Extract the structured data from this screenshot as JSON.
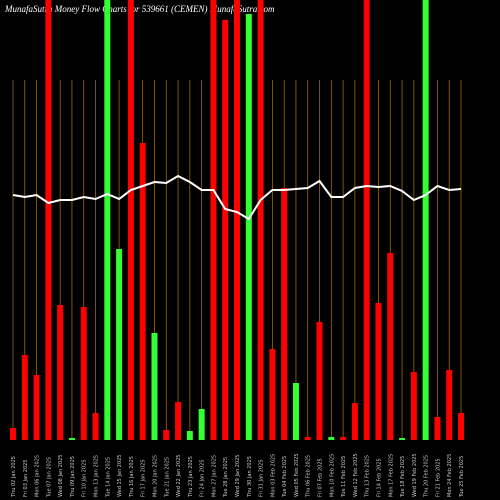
{
  "chart_data": {
    "type": "bar",
    "title": "MunafaSutra  Money Flow  Charts for 539661  (CEMEN) MunafaSutra.com",
    "categories": [
      "Thu 02 Jan 2025",
      "Fri 03 Jan 2025",
      "Mon 06 Jan 2025",
      "Tue 07 Jan 2025",
      "Wed 08 Jan 2025",
      "Thu 09 Jan 2025",
      "Fri 10 Jan 2025",
      "Mon 13 Jan 2025",
      "Tue 14 Jan 2025",
      "Wed 15 Jan 2025",
      "Thu 16 Jan 2025",
      "Fri 17 Jan 2025",
      "Mon 20 Jan 2025",
      "Tue 21 Jan 2025",
      "Wed 22 Jan 2025",
      "Thu 23 Jan 2025",
      "Fri 24 Jan 2025",
      "Mon 27 Jan 2025",
      "Tue 28 Jan 2025",
      "Wed 29 Jan 2025",
      "Thu 30 Jan 2025",
      "Fri 31 Jan 2025",
      "Mon 03 Feb 2025",
      "Tue 04 Feb 2025",
      "Wed 05 Feb 2025",
      "Thu 06 Feb 2025",
      "Fri 07 Feb 2025",
      "Mon 10 Feb 2025",
      "Tue 11 Feb 2025",
      "Wed 12 Feb 2025",
      "Thu 13 Feb 2025",
      "Fri 14 Feb 2025",
      "Mon 17 Feb 2025",
      "Tue 18 Feb 2025",
      "Wed 19 Feb 2025",
      "Thu 20 Feb 2025",
      "Fri 21 Feb 2025",
      "Mon 24 Feb 2025",
      "Tue 25 Feb 2025"
    ],
    "values": [
      12,
      85,
      65,
      440,
      135,
      2,
      133,
      27,
      440,
      191,
      440,
      297,
      107,
      10,
      38,
      9,
      31,
      440,
      420,
      440,
      426,
      440,
      91,
      252,
      57,
      3,
      118,
      3,
      3,
      37,
      440,
      137,
      187,
      2,
      68,
      440,
      23,
      70,
      27
    ],
    "colors": [
      "#ff0000",
      "#ff0000",
      "#ff0000",
      "#ff0000",
      "#ff0000",
      "#33ff33",
      "#ff0000",
      "#ff0000",
      "#33ff33",
      "#33ff33",
      "#ff0000",
      "#ff0000",
      "#33ff33",
      "#ff0000",
      "#ff0000",
      "#33ff33",
      "#33ff33",
      "#ff0000",
      "#ff0000",
      "#ff0000",
      "#33ff33",
      "#ff0000",
      "#ff0000",
      "#ff0000",
      "#33ff33",
      "#ff0000",
      "#ff0000",
      "#33ff33",
      "#ff0000",
      "#ff0000",
      "#ff0000",
      "#ff0000",
      "#ff0000",
      "#33ff33",
      "#ff0000",
      "#33ff33",
      "#ff0000",
      "#ff0000",
      "#ff0000"
    ],
    "line": [
      245,
      243,
      245,
      237,
      240,
      240,
      243,
      241,
      246,
      241,
      250,
      254,
      258,
      257,
      264,
      258,
      250,
      250,
      231,
      228,
      221,
      240,
      250,
      250,
      251,
      252,
      259,
      243,
      243,
      252,
      254,
      253,
      254,
      249,
      240,
      245,
      254,
      250,
      251
    ],
    "line_color": "#ffffff",
    "ylim": [
      0,
      440
    ]
  }
}
